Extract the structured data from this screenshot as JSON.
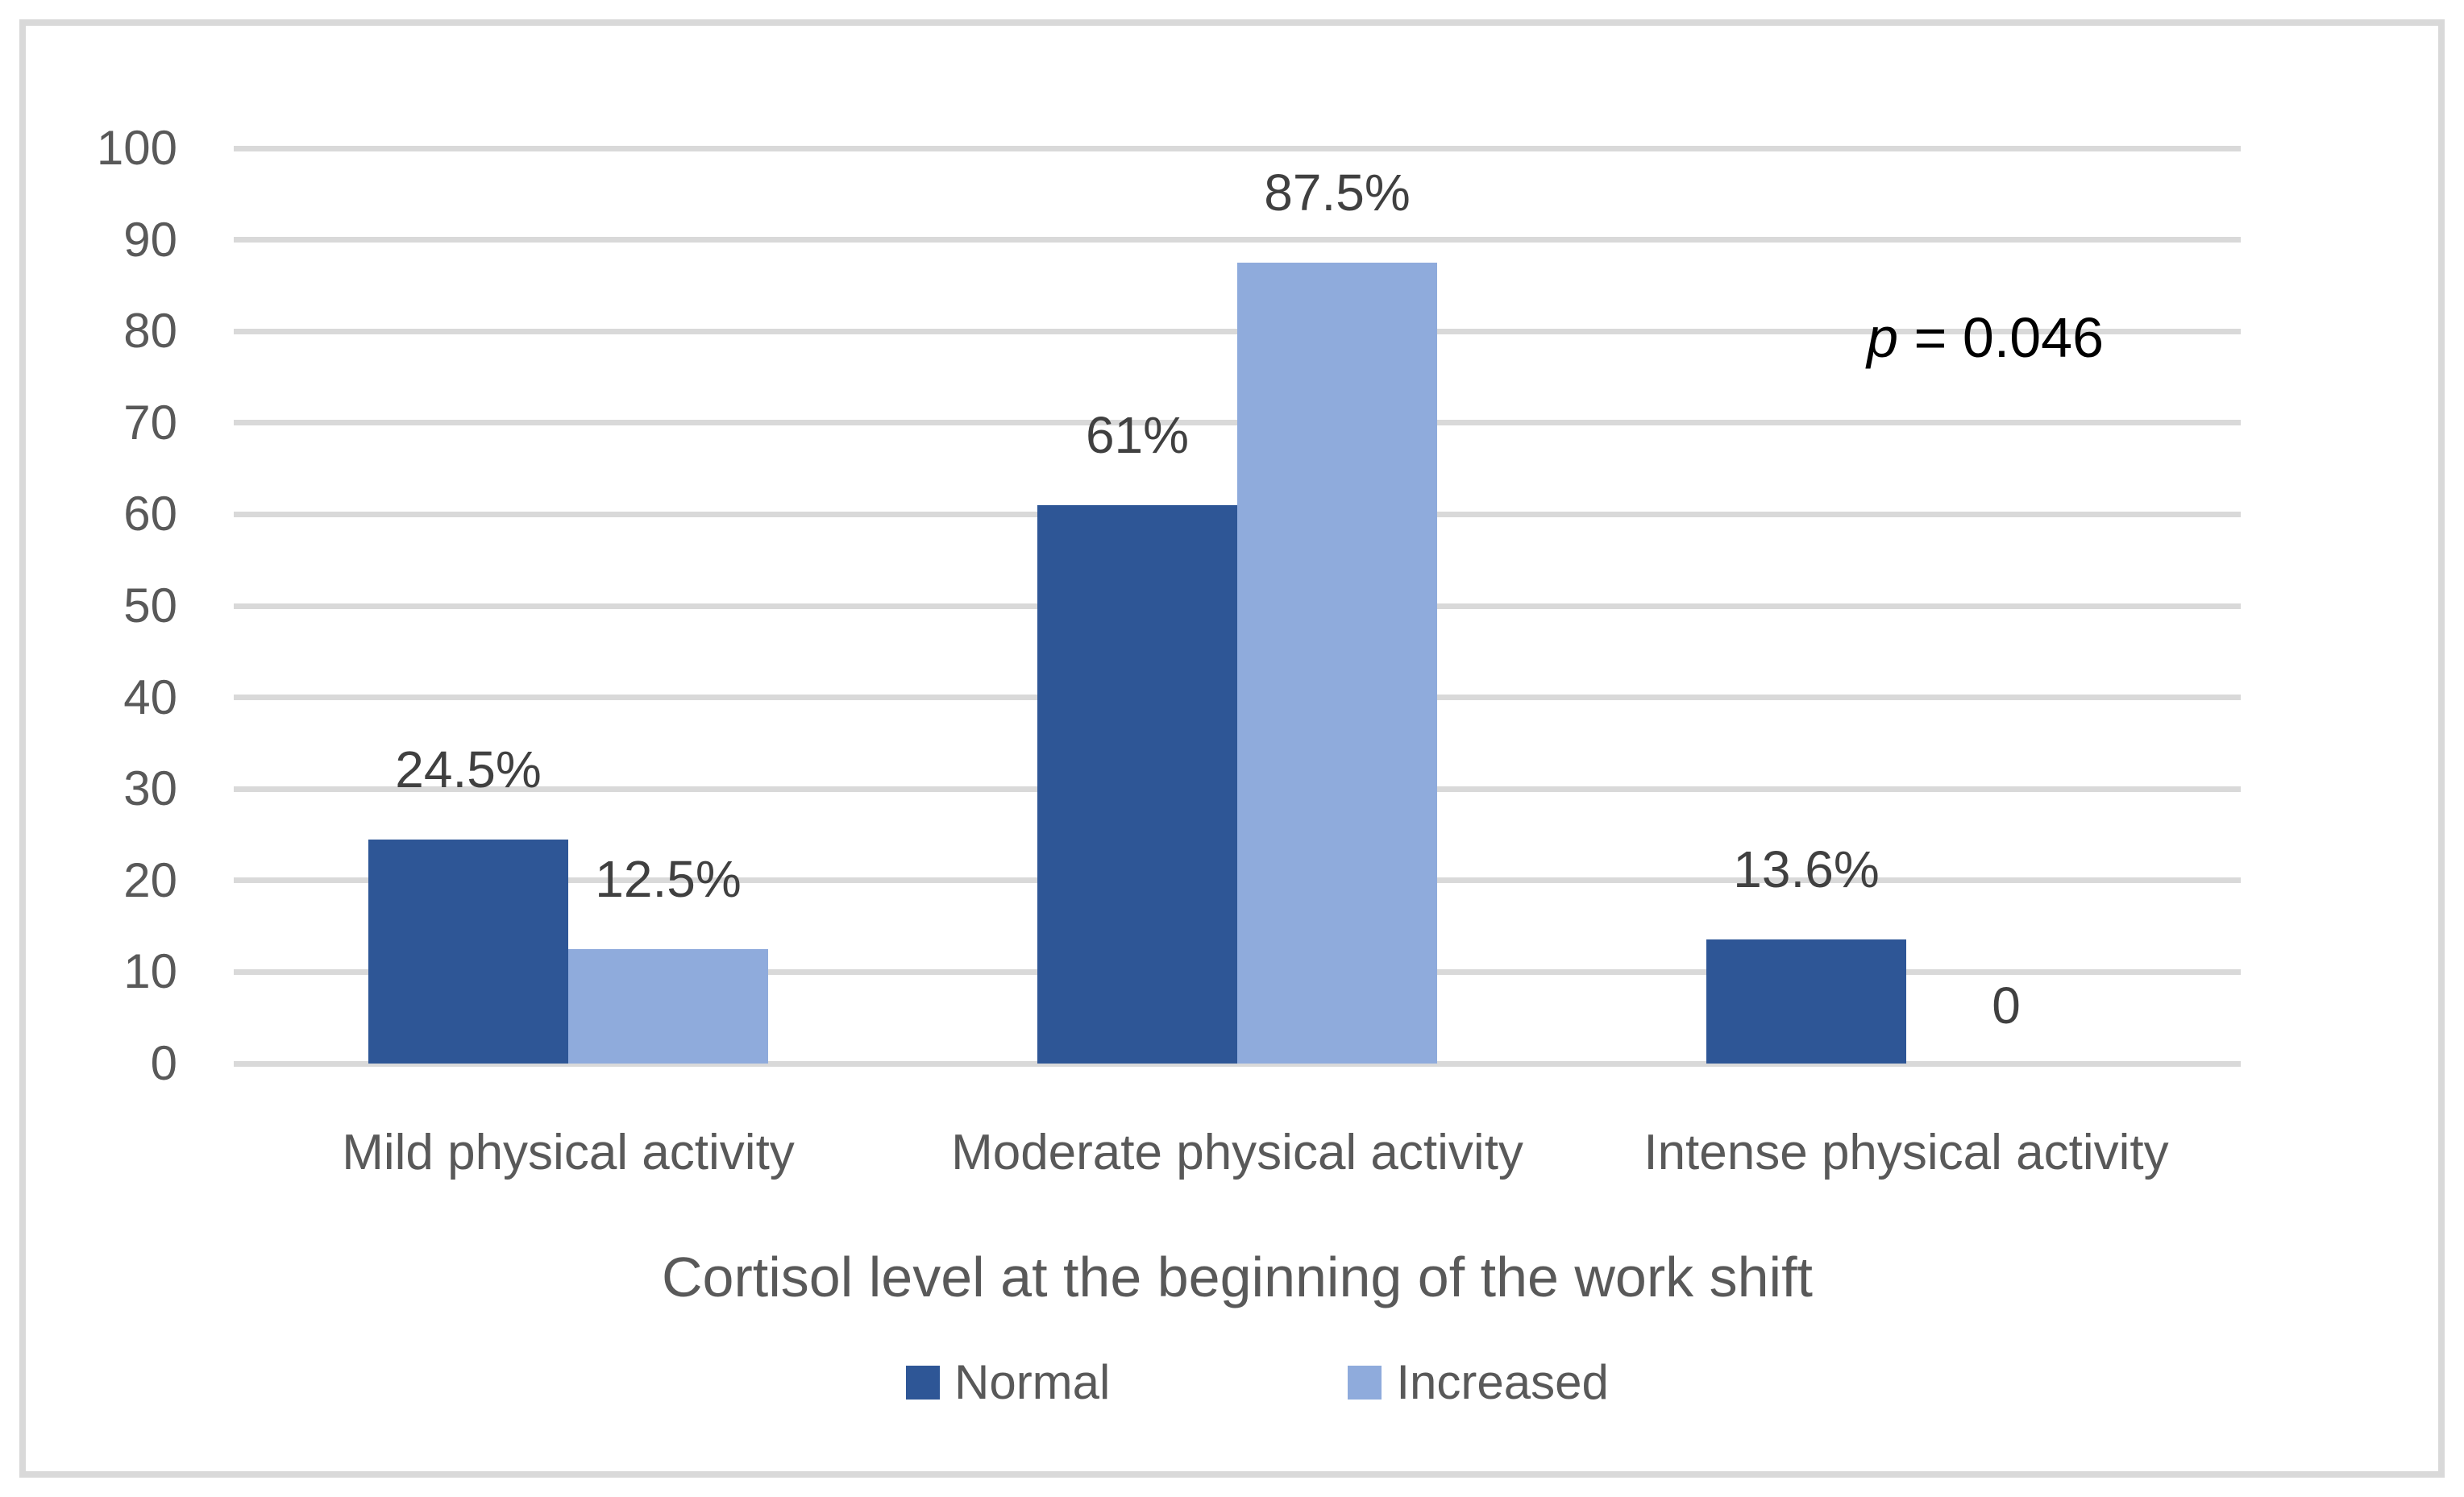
{
  "chart_data": {
    "type": "bar",
    "categories": [
      "Mild physical activity",
      "Moderate physical activity",
      "Intense physical activity"
    ],
    "series": [
      {
        "name": "Normal",
        "color": "#2E5696",
        "values": [
          24.5,
          61,
          13.6
        ],
        "labels": [
          "24.5%",
          "61%",
          "13.6%"
        ]
      },
      {
        "name": "Increased",
        "color": "#8FABDC",
        "values": [
          12.5,
          87.5,
          0
        ],
        "labels": [
          "12.5%",
          "87.5%",
          "0"
        ]
      }
    ],
    "title": "",
    "xlabel": "Cortisol level at the beginning of the work shift",
    "ylabel": "",
    "ylim": [
      0,
      100
    ],
    "ytick_step": 10,
    "yticks": [
      0,
      10,
      20,
      30,
      40,
      50,
      60,
      70,
      80,
      90,
      100
    ],
    "grid": true,
    "legend_position": "bottom",
    "annotation": "p = 0.046",
    "annotation_parts": {
      "prefix": "p",
      "rest": " = 0.046"
    },
    "colors": {
      "grid": "#D9D9D9",
      "frame_border": "#D9D9D9",
      "tick_text": "#595959",
      "category_text": "#595959",
      "axis_title_text": "#595959",
      "legend_text": "#595959",
      "data_label_text": "#404040",
      "annotation_text": "#000000"
    }
  }
}
